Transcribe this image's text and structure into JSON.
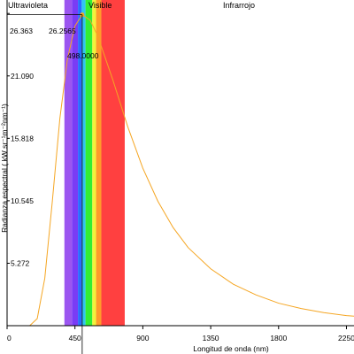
{
  "chart_data": {
    "type": "line",
    "title": "",
    "xlabel": "Longitud de onda (nm)",
    "ylabel": "Radianza espectral ( kW sr⁻¹m⁻²nm⁻¹)",
    "xlim": [
      0,
      2300
    ],
    "ylim": [
      0,
      27.5
    ],
    "x_ticks": [
      0,
      450,
      900,
      1350,
      1800,
      2250
    ],
    "y_ticks": [
      5.272,
      10.545,
      15.818,
      21.09,
      26.363
    ],
    "y_tick_labels": [
      "5.272",
      "10.545",
      "15.818",
      "21.090",
      "26.363"
    ],
    "regions": [
      {
        "label": "Ultravioleta"
      },
      {
        "label": "Visible"
      },
      {
        "label": "Infrarrojo"
      }
    ],
    "bands": [
      {
        "from": 380,
        "to": 430,
        "color": "#9b55f0"
      },
      {
        "from": 430,
        "to": 470,
        "color": "#7a3cf5"
      },
      {
        "from": 470,
        "to": 495,
        "color": "#2a6cff"
      },
      {
        "from": 495,
        "to": 520,
        "color": "#30c6f0"
      },
      {
        "from": 520,
        "to": 565,
        "color": "#33ee33"
      },
      {
        "from": 565,
        "to": 590,
        "color": "#f2f23a"
      },
      {
        "from": 590,
        "to": 625,
        "color": "#ff9a2a"
      },
      {
        "from": 625,
        "to": 780,
        "color": "#ff4040"
      }
    ],
    "series": [
      {
        "color": "#f5a623",
        "x": [
          150,
          200,
          250,
          300,
          350,
          400,
          450,
          498,
          550,
          600,
          700,
          800,
          900,
          1000,
          1100,
          1200,
          1350,
          1500,
          1650,
          1800,
          1950,
          2100,
          2250,
          2300
        ],
        "y": [
          0.0,
          0.6,
          4.0,
          10.5,
          17.5,
          22.5,
          25.3,
          26.2565,
          25.8,
          24.5,
          20.8,
          16.8,
          13.3,
          10.5,
          8.3,
          6.6,
          4.8,
          3.5,
          2.6,
          1.9,
          1.45,
          1.1,
          0.85,
          0.8
        ]
      }
    ],
    "annotations": {
      "peak_x": 498.0,
      "peak_y": 26.2565,
      "peak_x_label": "498.0000",
      "peak_y_label": "26.2565",
      "y_max_label": "26.363"
    },
    "legend": "none",
    "grid": false
  }
}
